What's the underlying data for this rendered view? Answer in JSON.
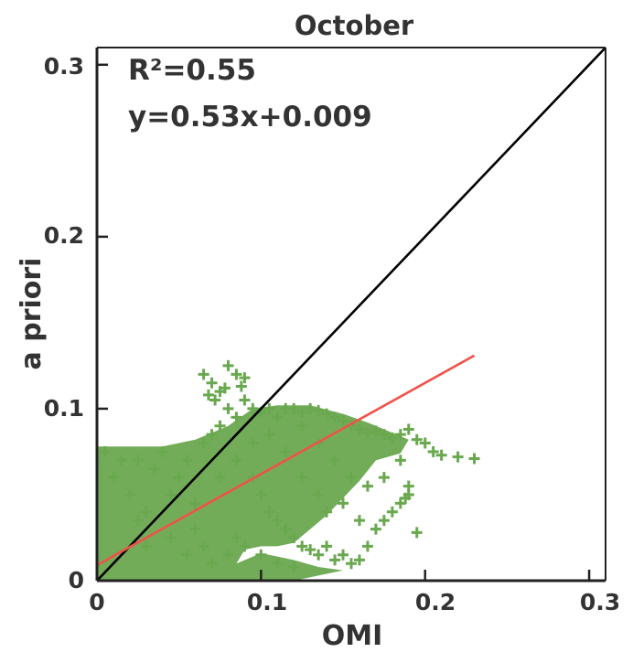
{
  "chart_data": {
    "type": "scatter",
    "title": "October",
    "xlabel": "OMI",
    "ylabel": "a priori",
    "xlim": [
      0,
      0.31
    ],
    "ylim": [
      0,
      0.31
    ],
    "x_ticks": [
      "0",
      "0.1",
      "0.2",
      "0.3"
    ],
    "y_ticks": [
      "0",
      "0.1",
      "0.2",
      "0.3"
    ],
    "annotations": {
      "r2": "R²=0.55",
      "equation": "y=0.53x+0.009"
    },
    "regression": {
      "slope": 0.53,
      "intercept": 0.009,
      "x_range": [
        0,
        0.23
      ]
    },
    "one_to_one_line": {
      "x_range": [
        0,
        0.31
      ]
    },
    "colors": {
      "points": "#6aa84f",
      "regression_line": "#f0524a",
      "one_to_one_line": "#000000",
      "axes": "#222222",
      "text": "#333333"
    },
    "marker": "plus",
    "series": [
      {
        "points": [
          [
            0.005,
            0.075
          ],
          [
            0.01,
            0.06
          ],
          [
            0.015,
            0.07
          ],
          [
            0.02,
            0.05
          ],
          [
            0.025,
            0.07
          ],
          [
            0.03,
            0.04
          ],
          [
            0.035,
            0.065
          ],
          [
            0.04,
            0.075
          ],
          [
            0.045,
            0.05
          ],
          [
            0.05,
            0.06
          ],
          [
            0.055,
            0.07
          ],
          [
            0.06,
            0.045
          ],
          [
            0.065,
            0.08
          ],
          [
            0.07,
            0.085
          ],
          [
            0.075,
            0.09
          ],
          [
            0.08,
            0.1
          ],
          [
            0.085,
            0.095
          ],
          [
            0.09,
            0.105
          ],
          [
            0.095,
            0.1
          ],
          [
            0.1,
            0.098
          ],
          [
            0.105,
            0.1
          ],
          [
            0.11,
            0.095
          ],
          [
            0.115,
            0.1
          ],
          [
            0.12,
            0.1
          ],
          [
            0.125,
            0.098
          ],
          [
            0.13,
            0.1
          ],
          [
            0.135,
            0.099
          ],
          [
            0.14,
            0.097
          ],
          [
            0.145,
            0.095
          ],
          [
            0.15,
            0.093
          ],
          [
            0.155,
            0.09
          ],
          [
            0.16,
            0.088
          ],
          [
            0.165,
            0.086
          ],
          [
            0.17,
            0.087
          ],
          [
            0.175,
            0.085
          ],
          [
            0.18,
            0.083
          ],
          [
            0.185,
            0.085
          ],
          [
            0.19,
            0.088
          ],
          [
            0.195,
            0.082
          ],
          [
            0.2,
            0.08
          ],
          [
            0.205,
            0.075
          ],
          [
            0.21,
            0.073
          ],
          [
            0.22,
            0.072
          ],
          [
            0.23,
            0.071
          ],
          [
            0.095,
            0.06
          ],
          [
            0.1,
            0.05
          ],
          [
            0.105,
            0.04
          ],
          [
            0.11,
            0.035
          ],
          [
            0.115,
            0.03
          ],
          [
            0.12,
            0.025
          ],
          [
            0.125,
            0.02
          ],
          [
            0.13,
            0.018
          ],
          [
            0.135,
            0.015
          ],
          [
            0.14,
            0.02
          ],
          [
            0.145,
            0.012
          ],
          [
            0.15,
            0.015
          ],
          [
            0.155,
            0.01
          ],
          [
            0.16,
            0.012
          ],
          [
            0.165,
            0.02
          ],
          [
            0.17,
            0.03
          ],
          [
            0.175,
            0.035
          ],
          [
            0.18,
            0.04
          ],
          [
            0.185,
            0.045
          ],
          [
            0.19,
            0.05
          ],
          [
            0.19,
            0.055
          ],
          [
            0.188,
            0.048
          ],
          [
            0.195,
            0.028
          ],
          [
            0.065,
            0.12
          ],
          [
            0.07,
            0.115
          ],
          [
            0.075,
            0.11
          ],
          [
            0.08,
            0.125
          ],
          [
            0.085,
            0.12
          ],
          [
            0.09,
            0.118
          ],
          [
            0.072,
            0.105
          ],
          [
            0.068,
            0.108
          ],
          [
            0.078,
            0.112
          ],
          [
            0.088,
            0.113
          ],
          [
            0.065,
            0.02
          ],
          [
            0.07,
            0.01
          ],
          [
            0.08,
            0.015
          ],
          [
            0.085,
            0.025
          ],
          [
            0.09,
            0.02
          ],
          [
            0.1,
            0.015
          ],
          [
            0.11,
            0.01
          ],
          [
            0.12,
            0.008
          ],
          [
            0.03,
            0.02
          ],
          [
            0.06,
            0.03
          ],
          [
            0.025,
            0.035
          ],
          [
            0.045,
            0.025
          ],
          [
            0.055,
            0.015
          ],
          [
            0.075,
            0.06
          ],
          [
            0.085,
            0.07
          ],
          [
            0.095,
            0.08
          ],
          [
            0.105,
            0.085
          ],
          [
            0.115,
            0.075
          ],
          [
            0.125,
            0.09
          ],
          [
            0.135,
            0.08
          ],
          [
            0.145,
            0.07
          ],
          [
            0.155,
            0.06
          ],
          [
            0.165,
            0.055
          ],
          [
            0.175,
            0.06
          ],
          [
            0.185,
            0.07
          ],
          [
            0.125,
            0.06
          ],
          [
            0.135,
            0.05
          ],
          [
            0.14,
            0.04
          ],
          [
            0.15,
            0.045
          ],
          [
            0.16,
            0.035
          ]
        ]
      }
    ]
  }
}
